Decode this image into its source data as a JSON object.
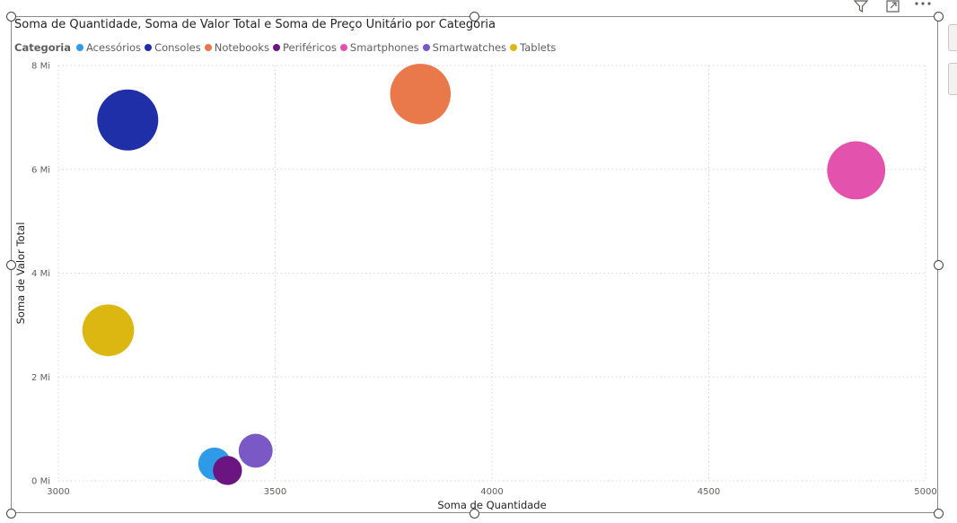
{
  "chart_data": {
    "type": "scatter",
    "title": "Soma de Quantidade, Soma de Valor Total e Soma de Preço Unitário por Categoria",
    "xlabel": "Soma de Quantidade",
    "ylabel": "Soma de Valor Total",
    "xlim": [
      3000,
      5000
    ],
    "ylim": [
      0,
      8000000
    ],
    "x_ticks": [
      3000,
      3500,
      4000,
      4500,
      5000
    ],
    "x_tick_labels": [
      "3000",
      "3500",
      "4000",
      "4500",
      "5000"
    ],
    "y_ticks": [
      0,
      2000000,
      4000000,
      6000000,
      8000000
    ],
    "y_tick_labels": [
      "0 Mi",
      "2 Mi",
      "4 Mi",
      "6 Mi",
      "8 Mi"
    ],
    "legend_title": "Categoria",
    "legend_position": "top-left",
    "grid": true,
    "size_field": "Soma de Preço Unitário",
    "series": [
      {
        "name": "Acessórios",
        "color": "#2f9be8",
        "x": 3360,
        "y": 330000,
        "size": 0.3
      },
      {
        "name": "Consoles",
        "color": "#1f2fa8",
        "x": 3160,
        "y": 6950000,
        "size": 1.0
      },
      {
        "name": "Notebooks",
        "color": "#e9784a",
        "x": 3835,
        "y": 7450000,
        "size": 0.98
      },
      {
        "name": "Periféricos",
        "color": "#6b1580",
        "x": 3390,
        "y": 200000,
        "size": 0.24
      },
      {
        "name": "Smartphones",
        "color": "#e353ad",
        "x": 4840,
        "y": 5980000,
        "size": 0.88
      },
      {
        "name": "Smartwatches",
        "color": "#7a58c6",
        "x": 3455,
        "y": 580000,
        "size": 0.33
      },
      {
        "name": "Tablets",
        "color": "#dcb711",
        "x": 3115,
        "y": 2900000,
        "size": 0.64
      }
    ]
  }
}
